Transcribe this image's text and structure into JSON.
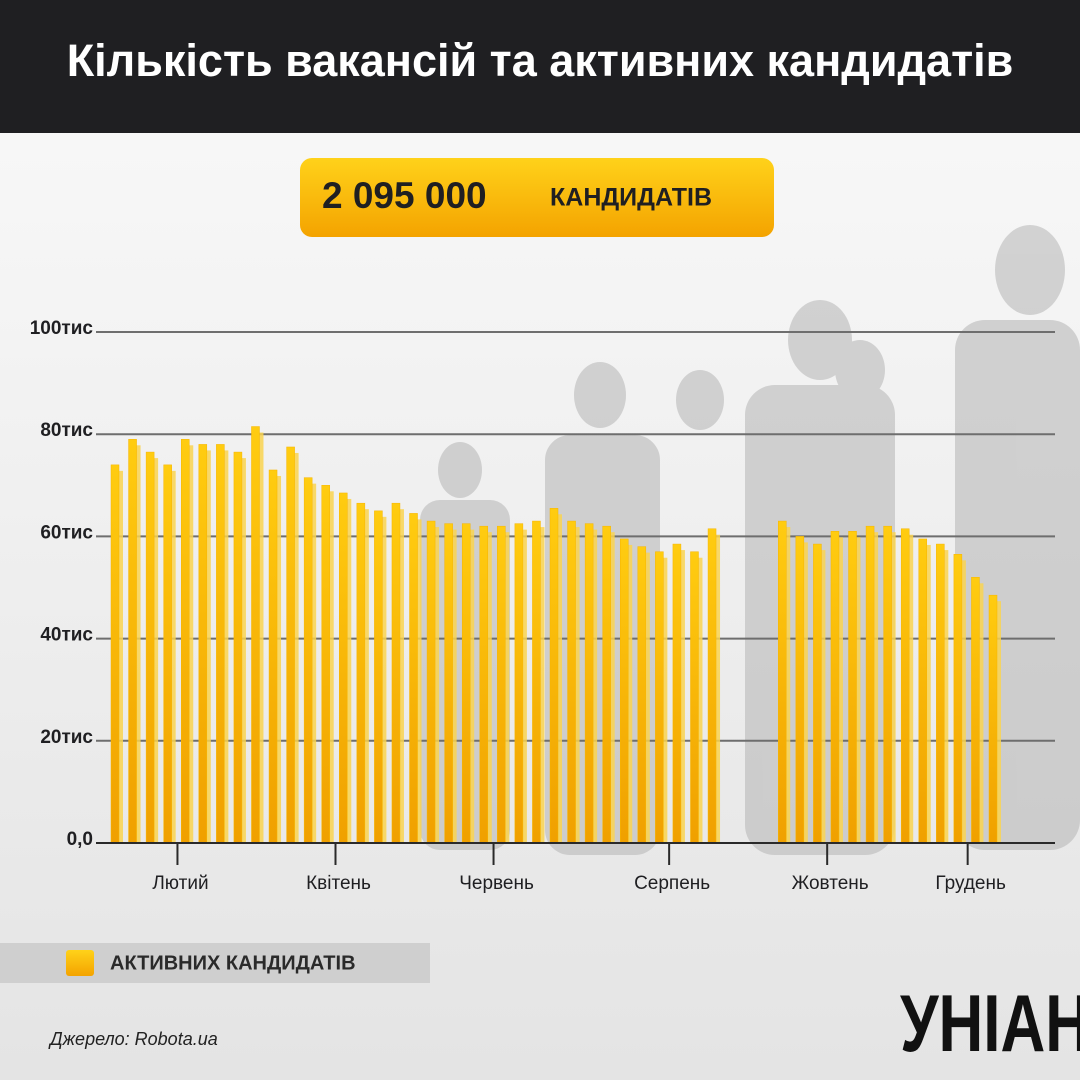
{
  "chart_data": {
    "type": "bar",
    "title": "Кількість вакансій та активних кандидатів",
    "annotations": [
      "2 095 000",
      "КАНДИДАТІВ"
    ],
    "categories": [
      null,
      null,
      null,
      "Лютий",
      null,
      null,
      null,
      null,
      null,
      null,
      null,
      null,
      "Квітень",
      null,
      null,
      null,
      null,
      null,
      null,
      null,
      null,
      "Червень",
      null,
      null,
      null,
      null,
      null,
      null,
      null,
      null,
      null,
      "Серпень",
      null,
      null,
      null,
      null,
      null,
      null,
      null,
      null,
      "Жовтень",
      null,
      null,
      null,
      null,
      null,
      null,
      null,
      "Грудень",
      null,
      null
    ],
    "series": [
      {
        "name": "АКТИВНИХ КАНДИДАТІВ",
        "color": "#f7b500",
        "values": [
          74,
          79,
          76.5,
          74,
          79,
          78,
          78,
          76.5,
          81.5,
          73,
          77.5,
          71.5,
          70,
          68.5,
          66.5,
          65,
          66.5,
          64.5,
          63,
          62.5,
          62.5,
          62,
          62,
          62.5,
          63,
          65.5,
          63,
          62.5,
          62,
          59.5,
          58,
          57,
          58.5,
          57,
          61.5,
          null,
          null,
          null,
          63,
          60,
          58.5,
          61,
          61,
          62,
          62,
          61.5,
          59.5,
          58.5,
          56.5,
          52,
          48.5
        ]
      }
    ],
    "ylim": [
      0,
      100
    ],
    "yticks": [
      {
        "value": 0,
        "label": "0,0"
      },
      {
        "value": 20,
        "label": "20тис"
      },
      {
        "value": 40,
        "label": "40тис"
      },
      {
        "value": 60,
        "label": "60тис"
      },
      {
        "value": 80,
        "label": "80тис"
      },
      {
        "value": 100,
        "label": "100тис"
      }
    ],
    "grid": true,
    "source": "Джерело: Robota.ua"
  },
  "logo": "УНІАН"
}
